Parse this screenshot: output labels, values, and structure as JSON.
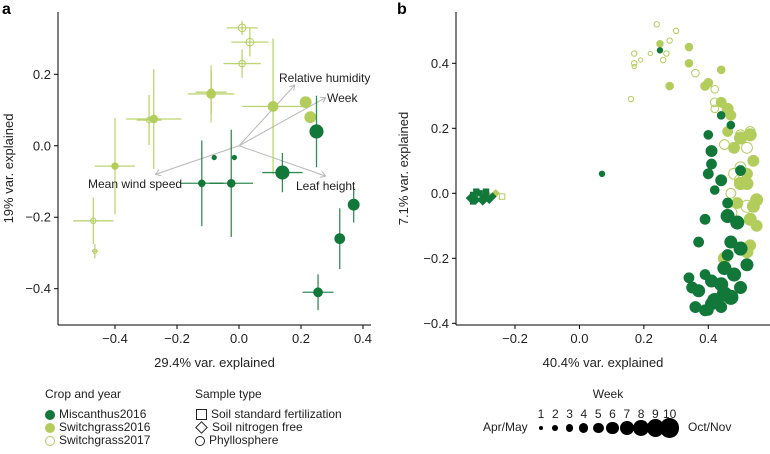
{
  "colors": {
    "Miscanthus2016": "#12783a",
    "Switchgrass2016": "#b3cd5c",
    "Switchgrass2017": "#b3cd5c",
    "arrow": "#b8b8b8"
  },
  "chart_data": [
    {
      "panel": "a",
      "type": "scatter",
      "xlabel": "29.4% var. explained",
      "ylabel": "19% var. explained",
      "xlim": [
        -0.56,
        0.42
      ],
      "ylim": [
        -0.5,
        0.37
      ],
      "xticks": [
        "−0.4",
        "−0.2",
        "0.0",
        "0.2",
        "0.4"
      ],
      "xtick_values": [
        -0.4,
        -0.2,
        0.0,
        0.2,
        0.4
      ],
      "yticks": [
        "−0.4",
        "−0.2",
        "0.0",
        "0.2"
      ],
      "ytick_values": [
        -0.4,
        -0.2,
        0.0,
        0.2
      ],
      "series": [
        {
          "name": "Switchgrass2017",
          "filled": false,
          "points": [
            {
              "x": 0.01,
              "y": 0.33,
              "xerr": 0.05,
              "yerr": 0.02,
              "week": 4
            },
            {
              "x": 0.035,
              "y": 0.29,
              "xerr": 0.06,
              "yerr": 0.04,
              "week": 4
            },
            {
              "x": 0.01,
              "y": 0.23,
              "xerr": 0.06,
              "yerr": 0.04,
              "week": 3
            },
            {
              "x": -0.09,
              "y": 0.15,
              "xerr": 0.05,
              "yerr": 0.06,
              "week": 3
            },
            {
              "x": -0.29,
              "y": 0.072,
              "xerr": 0.04,
              "yerr": 0.07,
              "week": 2
            },
            {
              "x": -0.47,
              "y": -0.21,
              "xerr": 0.065,
              "yerr": 0.065,
              "week": 2
            },
            {
              "x": -0.465,
              "y": -0.295,
              "xerr": 0.01,
              "yerr": 0.02,
              "week": 1
            }
          ]
        },
        {
          "name": "Switchgrass2016",
          "filled": true,
          "points": [
            {
              "x": -0.4,
              "y": -0.057,
              "xerr": 0.065,
              "yerr": 0.135,
              "week": 3
            },
            {
              "x": -0.275,
              "y": 0.075,
              "xerr": 0.09,
              "yerr": 0.14,
              "week": 4
            },
            {
              "x": -0.09,
              "y": 0.145,
              "xerr": 0.075,
              "yerr": 0.08,
              "week": 5
            },
            {
              "x": 0.11,
              "y": 0.11,
              "xerr": 0.1,
              "yerr": 0.19,
              "week": 6
            },
            {
              "x": 0.215,
              "y": 0.122,
              "xerr": 0,
              "yerr": 0,
              "week": 7
            },
            {
              "x": 0.23,
              "y": 0.08,
              "xerr": 0,
              "yerr": 0,
              "week": 7
            }
          ]
        },
        {
          "name": "Miscanthus2016",
          "filled": true,
          "points": [
            {
              "x": -0.08,
              "y": -0.033,
              "xerr": 0,
              "yerr": 0,
              "week": 1
            },
            {
              "x": -0.015,
              "y": -0.033,
              "xerr": 0,
              "yerr": 0,
              "week": 1
            },
            {
              "x": -0.12,
              "y": -0.105,
              "xerr": 0.07,
              "yerr": 0.12,
              "week": 3
            },
            {
              "x": -0.025,
              "y": -0.105,
              "xerr": 0.07,
              "yerr": 0.15,
              "week": 4
            },
            {
              "x": 0.14,
              "y": -0.075,
              "xerr": 0.065,
              "yerr": 0.055,
              "week": 9
            },
            {
              "x": 0.25,
              "y": 0.04,
              "xerr": 0.015,
              "yerr": 0.1,
              "week": 9
            },
            {
              "x": 0.37,
              "y": -0.165,
              "xerr": 0,
              "yerr": 0.05,
              "week": 7
            },
            {
              "x": 0.325,
              "y": -0.26,
              "xerr": 0,
              "yerr": 0.085,
              "week": 6
            },
            {
              "x": 0.255,
              "y": -0.41,
              "xerr": 0.05,
              "yerr": 0.05,
              "week": 5
            }
          ]
        }
      ],
      "vectors": [
        {
          "label": "Relative humidity",
          "x": 0.18,
          "y": 0.17
        },
        {
          "label": "Week",
          "x": 0.28,
          "y": 0.135
        },
        {
          "label": "Leaf height",
          "x": 0.28,
          "y": -0.085
        },
        {
          "label": "Mean wind speed",
          "x": -0.27,
          "y": -0.08
        }
      ]
    },
    {
      "panel": "b",
      "type": "scatter",
      "xlabel": "40.4% var. explained",
      "ylabel": "7.1% var. explained",
      "xlim": [
        -0.38,
        0.58
      ],
      "ylim": [
        -0.4,
        0.55
      ],
      "xticks": [
        "−0.2",
        "0.0",
        "0.2",
        "0.4"
      ],
      "xtick_values": [
        -0.2,
        0.0,
        0.2,
        0.4
      ],
      "yticks": [
        "−0.4",
        "−0.2",
        "0.0",
        "0.2",
        "0.4"
      ],
      "ytick_values": [
        -0.4,
        -0.2,
        0.0,
        0.2,
        0.4
      ],
      "series": [
        {
          "name": "Switchgrass2017",
          "filled": false,
          "points": [
            [
              0.24,
              0.52,
              2
            ],
            [
              0.3,
              0.5,
              2
            ],
            [
              0.28,
              0.47,
              2
            ],
            [
              0.17,
              0.43,
              2
            ],
            [
              0.22,
              0.43,
              1
            ],
            [
              0.27,
              0.43,
              2
            ],
            [
              0.19,
              0.41,
              1
            ],
            [
              0.17,
              0.4,
              2
            ],
            [
              0.17,
              0.39,
              1
            ],
            [
              0.26,
              0.41,
              2
            ],
            [
              0.16,
              0.29,
              2
            ],
            [
              0.36,
              0.37,
              4
            ],
            [
              0.42,
              0.32,
              4
            ],
            [
              0.42,
              0.26,
              4
            ],
            [
              0.42,
              0.28,
              5
            ],
            [
              0.5,
              0.18,
              6
            ],
            [
              0.53,
              0.19,
              6
            ],
            [
              0.45,
              0.15,
              6
            ],
            [
              0.52,
              0.14,
              7
            ],
            [
              0.5,
              0.08,
              7
            ],
            [
              0.48,
              0.06,
              7
            ],
            [
              0.5,
              0.04,
              8
            ],
            [
              0.47,
              0.0,
              6
            ],
            [
              0.5,
              0.03,
              8
            ],
            [
              0.52,
              -0.04,
              8
            ],
            [
              0.47,
              -0.06,
              8
            ],
            [
              -0.24,
              -0.01,
              2,
              "square"
            ]
          ]
        },
        {
          "name": "Switchgrass2016",
          "filled": true,
          "points": [
            [
              0.25,
              0.46,
              3
            ],
            [
              0.34,
              0.45,
              4
            ],
            [
              0.34,
              0.4,
              4
            ],
            [
              0.28,
              0.33,
              4
            ],
            [
              0.39,
              0.33,
              5
            ],
            [
              0.4,
              0.34,
              5
            ],
            [
              0.44,
              0.38,
              4
            ],
            [
              0.44,
              0.28,
              6
            ],
            [
              0.46,
              0.26,
              7
            ],
            [
              0.47,
              0.24,
              6
            ],
            [
              0.46,
              0.19,
              6
            ],
            [
              0.5,
              0.17,
              8
            ],
            [
              0.53,
              0.18,
              8
            ],
            [
              0.48,
              0.14,
              7
            ],
            [
              0.54,
              0.1,
              7
            ],
            [
              0.52,
              0.06,
              7
            ],
            [
              0.5,
              0.03,
              8
            ],
            [
              0.52,
              0.03,
              8
            ],
            [
              0.55,
              -0.02,
              8
            ],
            [
              0.54,
              -0.04,
              8
            ],
            [
              0.49,
              -0.03,
              7
            ],
            [
              0.53,
              -0.08,
              8
            ],
            [
              0.55,
              -0.1,
              7
            ],
            [
              0.53,
              -0.16,
              7
            ],
            [
              0.45,
              -0.2,
              8
            ],
            [
              0.52,
              -0.18,
              8
            ],
            [
              -0.26,
              0.0,
              2,
              "diamond"
            ],
            [
              -0.28,
              -0.01,
              2,
              "diamond"
            ]
          ]
        },
        {
          "name": "Miscanthus2016",
          "filled": true,
          "points": [
            [
              0.25,
              0.44,
              2
            ],
            [
              0.07,
              0.06,
              2
            ],
            [
              0.44,
              0.24,
              4
            ],
            [
              0.47,
              0.21,
              4
            ],
            [
              0.4,
              0.18,
              5
            ],
            [
              0.41,
              0.13,
              7
            ],
            [
              0.41,
              0.09,
              6
            ],
            [
              0.5,
              0.07,
              6
            ],
            [
              0.4,
              0.06,
              6
            ],
            [
              0.44,
              0.04,
              7
            ],
            [
              0.42,
              0.01,
              5
            ],
            [
              0.46,
              -0.03,
              6
            ],
            [
              0.39,
              -0.08,
              6
            ],
            [
              0.46,
              -0.07,
              9
            ],
            [
              0.49,
              -0.09,
              9
            ],
            [
              0.37,
              -0.15,
              6
            ],
            [
              0.47,
              -0.15,
              8
            ],
            [
              0.5,
              -0.17,
              9
            ],
            [
              0.46,
              -0.19,
              7
            ],
            [
              0.52,
              -0.22,
              8
            ],
            [
              0.45,
              -0.23,
              9
            ],
            [
              0.48,
              -0.25,
              9
            ],
            [
              0.34,
              -0.26,
              6
            ],
            [
              0.39,
              -0.25,
              6
            ],
            [
              0.41,
              -0.27,
              8
            ],
            [
              0.44,
              -0.28,
              9
            ],
            [
              0.35,
              -0.29,
              7
            ],
            [
              0.5,
              -0.29,
              8
            ],
            [
              0.37,
              -0.3,
              8
            ],
            [
              0.45,
              -0.31,
              10
            ],
            [
              0.42,
              -0.33,
              10
            ],
            [
              0.47,
              -0.32,
              10
            ],
            [
              0.36,
              -0.35,
              7
            ],
            [
              0.39,
              -0.36,
              7
            ],
            [
              0.41,
              -0.34,
              8
            ],
            [
              0.44,
              -0.35,
              7
            ],
            [
              0.4,
              -0.36,
              6
            ],
            [
              -0.34,
              -0.015,
              2,
              "diamond"
            ],
            [
              -0.33,
              -0.005,
              2,
              "square"
            ],
            [
              -0.32,
              -0.02,
              2,
              "diamond"
            ],
            [
              -0.31,
              0.0,
              2,
              "square"
            ],
            [
              -0.3,
              -0.015,
              2,
              "diamond"
            ],
            [
              -0.29,
              -0.005,
              2,
              "square"
            ],
            [
              -0.28,
              -0.02,
              2,
              "diamond"
            ],
            [
              -0.32,
              0.005,
              2,
              "square"
            ],
            [
              -0.3,
              -0.025,
              2,
              "diamond"
            ],
            [
              -0.29,
              0.005,
              2,
              "square"
            ],
            [
              -0.27,
              -0.01,
              2,
              "diamond"
            ],
            [
              -0.33,
              -0.025,
              2,
              "square"
            ]
          ]
        }
      ]
    }
  ],
  "panel_labels": {
    "a": "a",
    "b": "b"
  },
  "legend": {
    "crop": {
      "title": "Crop and year",
      "items": [
        "Miscanthus2016",
        "Switchgrass2016",
        "Switchgrass2017"
      ]
    },
    "sample": {
      "title": "Sample type",
      "items": [
        "Soil standard fertilization",
        "Soil nitrogen free",
        "Phyllosphere"
      ]
    },
    "week": {
      "title": "Week",
      "numbers": [
        "1",
        "2",
        "3",
        "4",
        "5",
        "6",
        "7",
        "8",
        "9",
        "10"
      ],
      "start_label": "Apr/May",
      "end_label": "Oct/Nov"
    }
  }
}
